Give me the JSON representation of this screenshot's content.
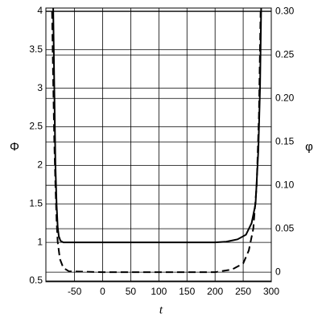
{
  "chart_data": {
    "type": "line",
    "x_label": "t",
    "y_label": "Φ",
    "y2_label": "φ",
    "xlim": [
      -101,
      300
    ],
    "xticks": [
      -50,
      0,
      50,
      100,
      150,
      200,
      250,
      300
    ],
    "ylim": [
      0.49,
      4.04
    ],
    "yticks": [
      0.5,
      1,
      1.5,
      2,
      2.5,
      3,
      3.5,
      4
    ],
    "y2lim": [
      -0.011,
      0.304
    ],
    "y2ticks": [
      0,
      0.05,
      {
        "value": 0.1,
        "label": "0.10"
      },
      0.15,
      {
        "value": 0.2,
        "label": "0.20"
      },
      0.25,
      {
        "value": 0.3,
        "label": "0.30"
      }
    ],
    "grid": true,
    "series": [
      {
        "color": "#000000",
        "dashed": false,
        "axis": "y",
        "x": [
          -88,
          -86,
          -84,
          -82,
          -80,
          -78,
          -75,
          -70,
          0,
          100,
          200,
          220,
          240,
          255,
          265,
          272,
          277,
          280,
          282
        ],
        "values": [
          4.04,
          3,
          2,
          1.5,
          1.2,
          1.08,
          1.02,
          1,
          1,
          1,
          1,
          1.01,
          1.04,
          1.1,
          1.25,
          1.5,
          2.2,
          3,
          4.04
        ]
      },
      {
        "color": "#000000",
        "dashed": true,
        "axis": "y2",
        "x": [
          -90,
          -88,
          -86,
          -84,
          -82,
          -80,
          -76,
          -70,
          -60,
          0,
          100,
          200,
          230,
          250,
          260,
          268,
          274,
          278,
          281
        ],
        "values": [
          0.3,
          0.22,
          0.15,
          0.1,
          0.06,
          0.035,
          0.015,
          0.005,
          0.001,
          0,
          0,
          0,
          0.003,
          0.01,
          0.025,
          0.05,
          0.1,
          0.18,
          0.3
        ]
      }
    ]
  }
}
